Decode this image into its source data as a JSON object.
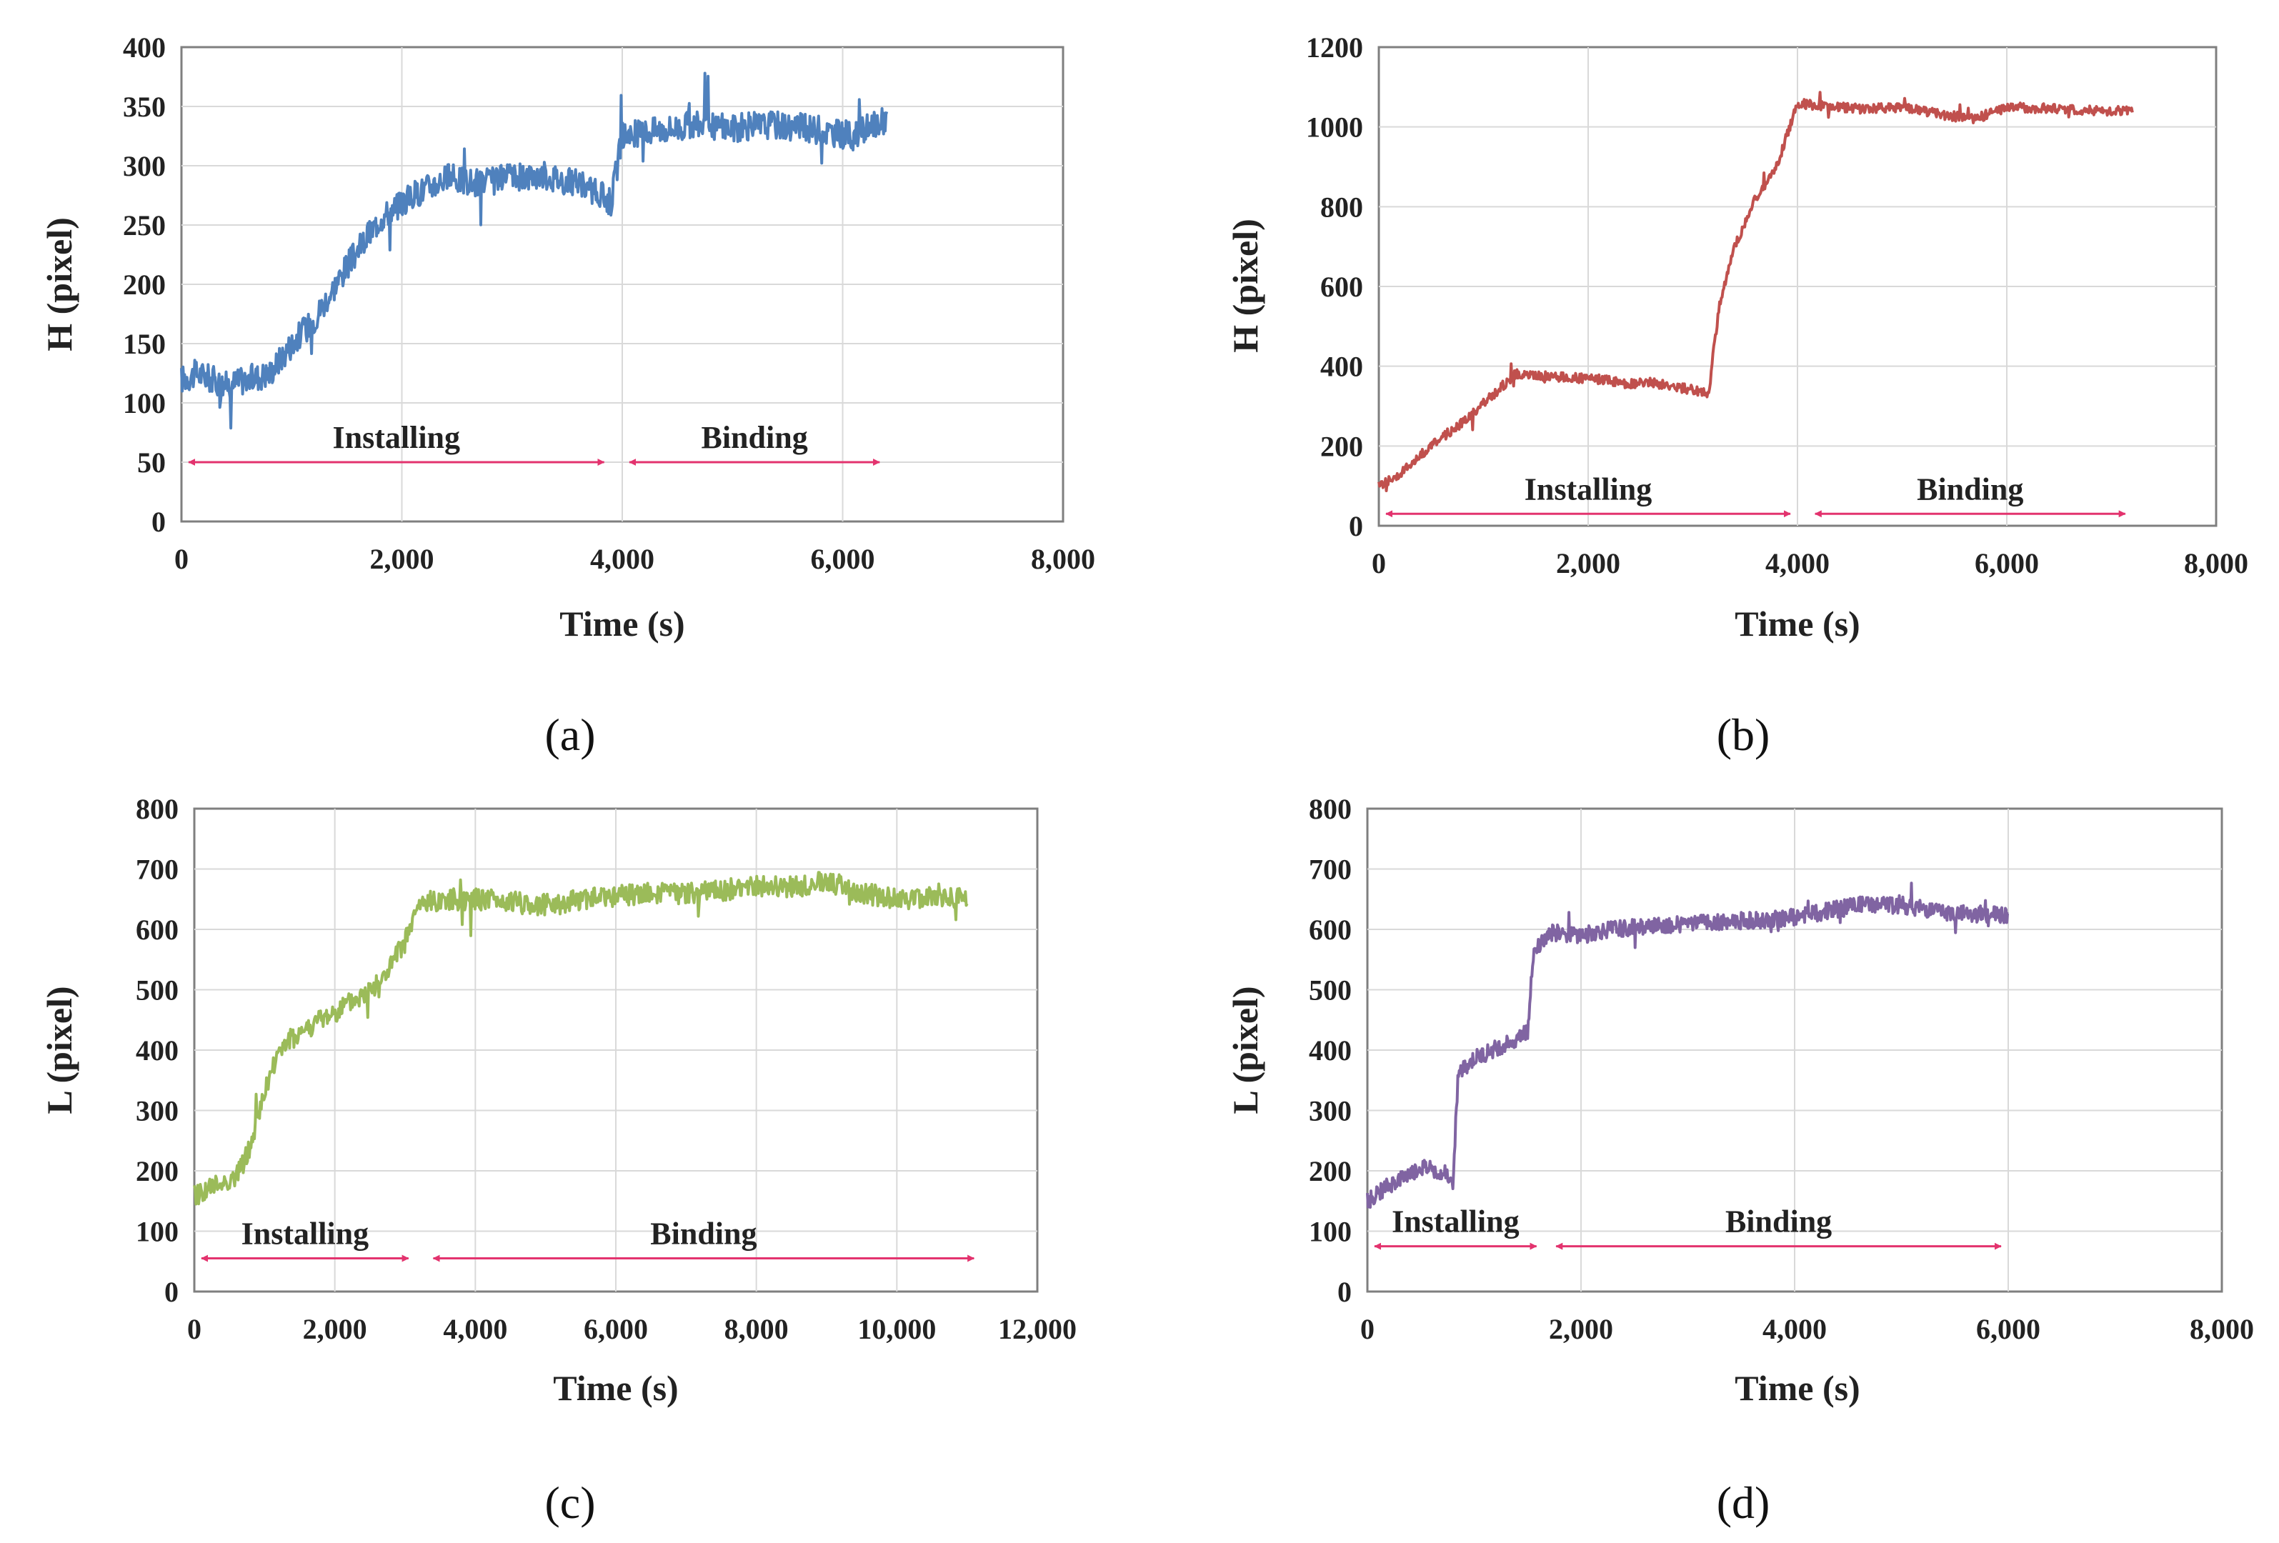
{
  "chart_data": [
    {
      "type": "line",
      "panel_label": "(a)",
      "title": "",
      "xlabel": "Time (s)",
      "ylabel": "H (pixel)",
      "xlim": [
        0,
        8000
      ],
      "ylim": [
        0,
        400
      ],
      "x_ticks": [
        0,
        2000,
        4000,
        6000,
        8000
      ],
      "x_tick_labels": [
        "0",
        "2,000",
        "4,000",
        "6,000",
        "8,000"
      ],
      "y_ticks": [
        0,
        50,
        100,
        150,
        200,
        250,
        300,
        350,
        400
      ],
      "y_tick_labels": [
        "0",
        "50",
        "100",
        "150",
        "200",
        "250",
        "300",
        "350",
        "400"
      ],
      "grid": true,
      "series": [
        {
          "name": "H",
          "color": "#4f81bd",
          "noise": 12,
          "x": [
            0,
            150,
            400,
            800,
            1000,
            1200,
            1500,
            1800,
            2100,
            2400,
            2700,
            3000,
            3300,
            3600,
            3900,
            4000,
            4300,
            4700,
            5000,
            5400,
            5800,
            6100,
            6400
          ],
          "y": [
            120,
            125,
            115,
            125,
            150,
            170,
            215,
            255,
            275,
            290,
            285,
            290,
            292,
            285,
            270,
            325,
            330,
            335,
            332,
            335,
            330,
            325,
            340
          ]
        }
      ],
      "phases": [
        {
          "label": "Installing",
          "start": 0,
          "end": 3900,
          "y": 50
        },
        {
          "label": "Binding",
          "start": 4000,
          "end": 6400,
          "y": 50
        }
      ]
    },
    {
      "type": "line",
      "panel_label": "(b)",
      "title": "",
      "xlabel": "Time (s)",
      "ylabel": "H (pixel)",
      "xlim": [
        0,
        8000
      ],
      "ylim": [
        0,
        1200
      ],
      "x_ticks": [
        0,
        2000,
        4000,
        6000,
        8000
      ],
      "x_tick_labels": [
        "0",
        "2,000",
        "4,000",
        "6,000",
        "8,000"
      ],
      "y_ticks": [
        0,
        200,
        400,
        600,
        800,
        1000,
        1200
      ],
      "y_tick_labels": [
        "0",
        "200",
        "400",
        "600",
        "800",
        "1000",
        "1200"
      ],
      "grid": true,
      "series": [
        {
          "name": "H",
          "color": "#c0504d",
          "noise": 12,
          "x": [
            0,
            200,
            500,
            800,
            1100,
            1300,
            1600,
            1900,
            2200,
            2400,
            2600,
            2800,
            3000,
            3150,
            3250,
            3400,
            3600,
            3800,
            4000,
            4300,
            4700,
            5000,
            5400,
            5700,
            6000,
            6500,
            7000,
            7200
          ],
          "y": [
            100,
            130,
            200,
            260,
            330,
            380,
            375,
            370,
            365,
            355,
            360,
            350,
            340,
            330,
            550,
            700,
            820,
            900,
            1060,
            1050,
            1045,
            1050,
            1030,
            1020,
            1050,
            1045,
            1040,
            1040
          ]
        }
      ],
      "phases": [
        {
          "label": "Installing",
          "start": 0,
          "end": 4000,
          "y": 30
        },
        {
          "label": "Binding",
          "start": 4100,
          "end": 7200,
          "y": 30
        }
      ]
    },
    {
      "type": "line",
      "panel_label": "(c)",
      "title": "",
      "xlabel": "Time (s)",
      "ylabel": "L (pixel)",
      "xlim": [
        0,
        12000
      ],
      "ylim": [
        0,
        800
      ],
      "x_ticks": [
        0,
        2000,
        4000,
        6000,
        8000,
        10000,
        12000
      ],
      "x_tick_labels": [
        "0",
        "2,000",
        "4,000",
        "6,000",
        "8,000",
        "10,000",
        "12,000"
      ],
      "y_ticks": [
        0,
        100,
        200,
        300,
        400,
        500,
        600,
        700,
        800
      ],
      "y_tick_labels": [
        "0",
        "100",
        "200",
        "300",
        "400",
        "500",
        "600",
        "700",
        "800"
      ],
      "grid": true,
      "series": [
        {
          "name": "L",
          "color": "#9bbb59",
          "noise": 18,
          "x": [
            0,
            300,
            600,
            800,
            1000,
            1200,
            1500,
            1800,
            2100,
            2400,
            2700,
            3000,
            3200,
            3500,
            4000,
            4500,
            5000,
            5500,
            6000,
            6500,
            7000,
            7500,
            8000,
            8500,
            9000,
            9500,
            10000,
            10500,
            11000
          ],
          "y": [
            160,
            175,
            190,
            240,
            330,
            400,
            430,
            450,
            470,
            490,
            520,
            580,
            640,
            650,
            650,
            645,
            640,
            650,
            655,
            660,
            660,
            665,
            670,
            670,
            680,
            660,
            650,
            655,
            650
          ]
        }
      ],
      "phases": [
        {
          "label": "Installing",
          "start": 0,
          "end": 3150,
          "y": 55
        },
        {
          "label": "Binding",
          "start": 3300,
          "end": 11200,
          "y": 55
        }
      ]
    },
    {
      "type": "line",
      "panel_label": "(d)",
      "title": "",
      "xlabel": "Time (s)",
      "ylabel": "L (pixel)",
      "xlim": [
        0,
        8000
      ],
      "ylim": [
        0,
        800
      ],
      "x_ticks": [
        0,
        2000,
        4000,
        6000,
        8000
      ],
      "x_tick_labels": [
        "0",
        "2,000",
        "4,000",
        "6,000",
        "8,000"
      ],
      "y_ticks": [
        0,
        100,
        200,
        300,
        400,
        500,
        600,
        700,
        800
      ],
      "y_tick_labels": [
        "0",
        "100",
        "200",
        "300",
        "400",
        "500",
        "600",
        "700",
        "800"
      ],
      "grid": true,
      "series": [
        {
          "name": "L",
          "color": "#8064a2",
          "noise": 14,
          "x": [
            0,
            200,
            500,
            700,
            800,
            850,
            1000,
            1300,
            1500,
            1550,
            1700,
            2000,
            2300,
            2600,
            3000,
            3300,
            3600,
            4000,
            4300,
            4600,
            5000,
            5300,
            5600,
            6000
          ],
          "y": [
            150,
            175,
            205,
            200,
            180,
            360,
            385,
            410,
            430,
            560,
            595,
            590,
            600,
            605,
            610,
            612,
            615,
            620,
            630,
            640,
            640,
            630,
            625,
            625
          ]
        }
      ],
      "phases": [
        {
          "label": "Installing",
          "start": 0,
          "end": 1650,
          "y": 75
        },
        {
          "label": "Binding",
          "start": 1700,
          "end": 6000,
          "y": 75
        }
      ]
    }
  ]
}
